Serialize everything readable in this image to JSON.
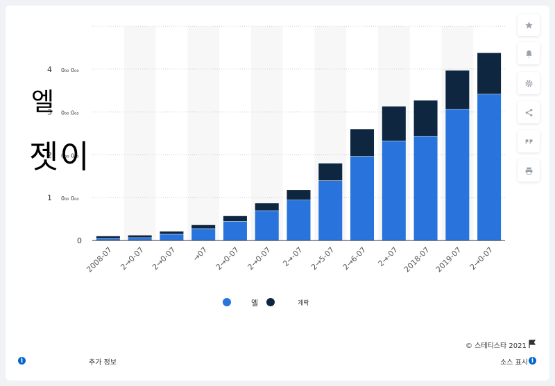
{
  "chart_data": {
    "type": "bar",
    "stacked": true,
    "categories": [
      "2008-07",
      "2009-07",
      "2010-07",
      "2011-07",
      "2012-07",
      "2013-07",
      "2014-07",
      "2015-07",
      "2016-07",
      "2017-07",
      "2018-07",
      "2019-07",
      "2020-07"
    ],
    "tick_labels": [
      "2008-07",
      "2→0-07",
      "2→0-07",
      "→07",
      "2→0-07",
      "2→0-07",
      "2→-07",
      "2→5-07",
      "2→6-07",
      "2→-07",
      "2018-07",
      "2019-07",
      "2→0-07"
    ],
    "series": [
      {
        "name": "엘",
        "color": "#2874dc",
        "values": [
          0.05,
          0.07,
          0.15,
          0.28,
          0.45,
          0.7,
          0.95,
          1.4,
          1.97,
          2.33,
          2.44,
          3.07,
          3.42
        ]
      },
      {
        "name": "계락",
        "color": "#0f2640",
        "values": [
          0.05,
          0.05,
          0.06,
          0.08,
          0.12,
          0.17,
          0.23,
          0.4,
          0.63,
          0.8,
          0.83,
          0.9,
          0.96
        ]
      }
    ],
    "ylim": [
      0,
      5
    ],
    "y_ticks": [
      0,
      1,
      2,
      3,
      4
    ],
    "y_tick_labels": [
      "0",
      "1",
      "2",
      "3",
      "4"
    ],
    "y_tick_suffix": "0₀₀ 0₀₀",
    "grid": true,
    "legend_position": "bottom"
  },
  "overlay": {
    "glyph_top": "엘",
    "glyph_bottom": "젯이"
  },
  "legend": {
    "series1_label": "엘",
    "series2_label": "계락"
  },
  "footer": {
    "copyright": "©  스테티스타 2021",
    "more_info": "추가 정보",
    "show_source": "소스 표시"
  },
  "sidebar": {
    "icons": [
      "star-icon",
      "bell-icon",
      "gear-icon",
      "share-icon",
      "quote-icon",
      "print-icon"
    ]
  }
}
